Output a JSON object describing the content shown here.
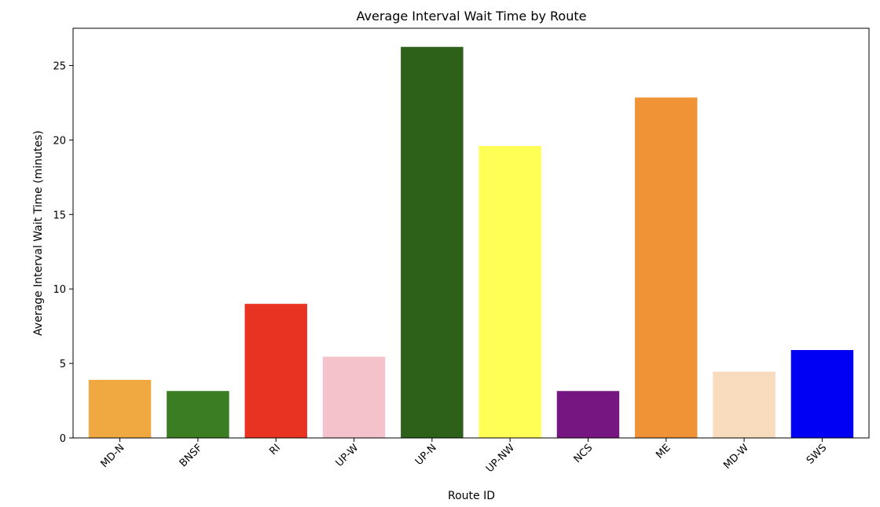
{
  "chart_data": {
    "type": "bar",
    "title": "Average Interval Wait Time by Route",
    "xlabel": "Route ID",
    "ylabel": "Average Interval Wait Time (minutes)",
    "ylim": [
      0,
      27.5
    ],
    "yticks": [
      0,
      5,
      10,
      15,
      20,
      25
    ],
    "grid": false,
    "categories": [
      "MD-N",
      "BNSF",
      "RI",
      "UP-W",
      "UP-N",
      "UP-NW",
      "NCS",
      "ME",
      "MD-W",
      "SWS"
    ],
    "values": [
      3.9,
      3.15,
      9.0,
      5.45,
      26.25,
      19.6,
      3.15,
      22.85,
      4.45,
      5.9
    ],
    "colors": [
      "#f0a940",
      "#3a7d22",
      "#e83323",
      "#f4c2cb",
      "#2d6119",
      "#ffff55",
      "#761781",
      "#f09337",
      "#f9dcbe",
      "#0000f5"
    ]
  }
}
